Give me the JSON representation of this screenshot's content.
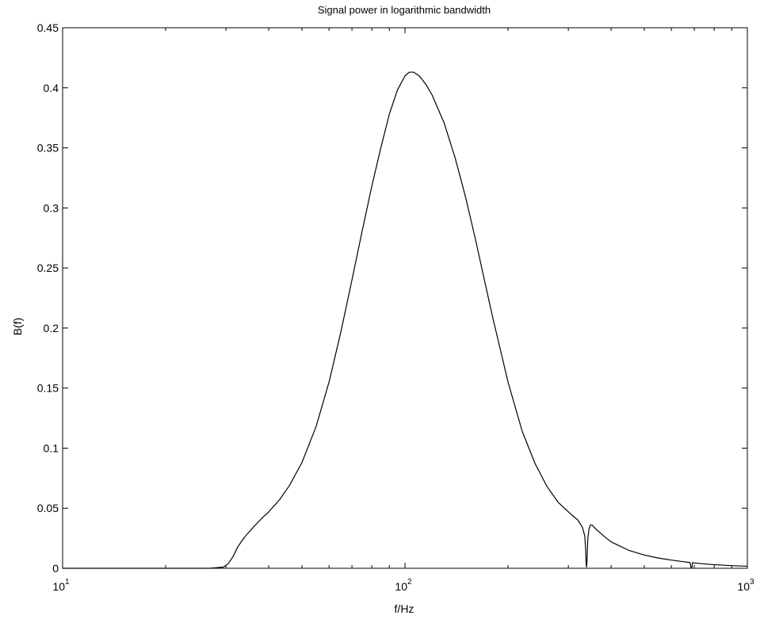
{
  "chart_data": {
    "type": "line",
    "title": "Signal power in logarithmic bandwidth",
    "xlabel": "f/Hz",
    "ylabel": "B(f)",
    "xscale": "log",
    "xlim": [
      10,
      1000
    ],
    "ylim": [
      0,
      0.45
    ],
    "grid": false,
    "xticks": [
      {
        "value": 10,
        "base": "10",
        "exp": "1"
      },
      {
        "value": 100,
        "base": "10",
        "exp": "2"
      },
      {
        "value": 1000,
        "base": "10",
        "exp": "3"
      }
    ],
    "yticks": [
      {
        "value": 0,
        "label": "0"
      },
      {
        "value": 0.05,
        "label": "0.05"
      },
      {
        "value": 0.1,
        "label": "0.1"
      },
      {
        "value": 0.15,
        "label": "0.15"
      },
      {
        "value": 0.2,
        "label": "0.2"
      },
      {
        "value": 0.25,
        "label": "0.25"
      },
      {
        "value": 0.3,
        "label": "0.3"
      },
      {
        "value": 0.35,
        "label": "0.35"
      },
      {
        "value": 0.4,
        "label": "0.4"
      },
      {
        "value": 0.45,
        "label": "0.45"
      }
    ],
    "series": [
      {
        "color": "#000000",
        "x": [
          10,
          20,
          27,
          29.5,
          30.5,
          31.5,
          32.5,
          34,
          36,
          38,
          40,
          43,
          46,
          50,
          55,
          60,
          65,
          70,
          75,
          80,
          85,
          90,
          95,
          100,
          103,
          106,
          110,
          115,
          120,
          130,
          140,
          150,
          160,
          180,
          200,
          220,
          240,
          260,
          280,
          300,
          320,
          330,
          335,
          337,
          338,
          339,
          340,
          342,
          345,
          348,
          352,
          360,
          380,
          400,
          450,
          500,
          550,
          600,
          650,
          680,
          685,
          688,
          692,
          700,
          750,
          800,
          900,
          1000
        ],
        "y": [
          0,
          0,
          0,
          0.001,
          0.004,
          0.01,
          0.018,
          0.026,
          0.034,
          0.041,
          0.047,
          0.057,
          0.069,
          0.088,
          0.118,
          0.155,
          0.197,
          0.24,
          0.281,
          0.318,
          0.35,
          0.378,
          0.398,
          0.41,
          0.413,
          0.413,
          0.41,
          0.403,
          0.394,
          0.371,
          0.342,
          0.31,
          0.276,
          0.21,
          0.155,
          0.114,
          0.087,
          0.068,
          0.055,
          0.047,
          0.04,
          0.034,
          0.027,
          0.016,
          0.005,
          0.001,
          0.005,
          0.025,
          0.033,
          0.036,
          0.036,
          0.033,
          0.027,
          0.022,
          0.015,
          0.011,
          0.0085,
          0.0068,
          0.0055,
          0.0048,
          0.0005,
          0.0005,
          0.0047,
          0.0045,
          0.0036,
          0.003,
          0.0022,
          0.0017
        ]
      }
    ]
  }
}
